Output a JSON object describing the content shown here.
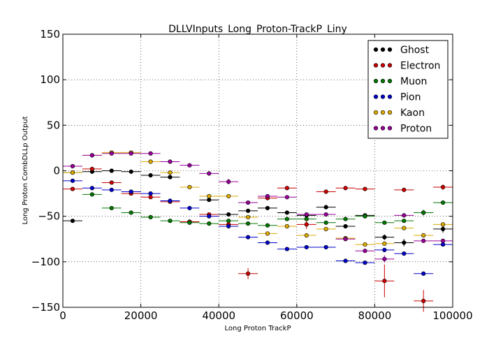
{
  "chart_data": {
    "type": "scatter",
    "title": "DLLVInputs_Long_Proton-TrackP_Liny",
    "xlabel": "Long Proton TrackP",
    "ylabel": "Long Proton CombDLLp Output",
    "xlim": [
      0,
      100000
    ],
    "ylim": [
      -150,
      150
    ],
    "xticks": [
      0,
      20000,
      40000,
      60000,
      80000,
      100000
    ],
    "yticks": [
      -150,
      -100,
      -50,
      0,
      50,
      100,
      150
    ],
    "x_bin_width": 5000,
    "x": [
      2500,
      7500,
      12500,
      17500,
      22500,
      27500,
      32500,
      37500,
      42500,
      47500,
      52500,
      57500,
      62500,
      67500,
      72500,
      77500,
      82500,
      87500,
      92500,
      97500
    ],
    "grid": true,
    "legend_position": "top-right",
    "series": [
      {
        "name": "Ghost",
        "color": "#000000",
        "values": [
          -55,
          -1,
          0,
          -1,
          -5,
          -7,
          -56,
          -32,
          -48,
          -44,
          -41,
          -46,
          -49,
          -40,
          -61,
          -49,
          -73,
          -79,
          -46,
          -64
        ],
        "errors": [
          0,
          0,
          0,
          0,
          0,
          0,
          0,
          0,
          0,
          0,
          0,
          0,
          0,
          0,
          0,
          2,
          3,
          4,
          3,
          4
        ]
      },
      {
        "name": "Electron",
        "color": "#cc0000",
        "values": [
          -20,
          2,
          -13,
          -25,
          -29,
          -34,
          -56,
          -48,
          -59,
          -113,
          -30,
          -19,
          -59,
          -23,
          -19,
          -20,
          -121,
          -21,
          -143,
          -18
        ],
        "errors": [
          0,
          0,
          0,
          0,
          0,
          0,
          0,
          0,
          0,
          6,
          0,
          2,
          5,
          1,
          1,
          1,
          18,
          2,
          12,
          3
        ]
      },
      {
        "name": "Muon",
        "color": "#007700",
        "values": [
          -2,
          -26,
          -41,
          -46,
          -51,
          -55,
          -57,
          -58,
          -55,
          -58,
          -60,
          -53,
          -53,
          -57,
          -53,
          -50,
          -57,
          -55,
          -46,
          -35
        ],
        "errors": [
          0,
          0,
          0,
          0,
          0,
          0,
          0,
          0,
          0,
          0,
          0,
          0,
          0,
          0,
          0,
          0,
          0,
          0,
          0,
          0
        ]
      },
      {
        "name": "Pion",
        "color": "#0000cc",
        "values": [
          -11,
          -19,
          -21,
          -23,
          -25,
          -33,
          -41,
          -50,
          -61,
          -73,
          -79,
          -86,
          -84,
          -84,
          -99,
          -101,
          -87,
          -91,
          -113,
          -81
        ],
        "errors": [
          0,
          0,
          0,
          0,
          0,
          0,
          0,
          0,
          0,
          0,
          0,
          0,
          0,
          0,
          0,
          0,
          0,
          0,
          0,
          0
        ]
      },
      {
        "name": "Kaon",
        "color": "#ddaa00",
        "values": [
          -2,
          17,
          20,
          20,
          10,
          -2,
          -18,
          -28,
          -28,
          -51,
          -69,
          -61,
          -71,
          -64,
          -74,
          -81,
          -80,
          -63,
          -71,
          -59
        ],
        "errors": [
          0,
          0,
          0,
          0,
          0,
          0,
          0,
          0,
          0,
          0,
          0,
          0,
          0,
          0,
          0,
          0,
          0,
          0,
          0,
          0
        ]
      },
      {
        "name": "Proton",
        "color": "#990099",
        "values": [
          5,
          17,
          19,
          19,
          19,
          10,
          6,
          -3,
          -12,
          -35,
          -28,
          -29,
          -48,
          -48,
          -75,
          -88,
          -97,
          -49,
          -77,
          -77
        ],
        "errors": [
          0,
          0,
          0,
          0,
          0,
          0,
          0,
          0,
          3,
          0,
          0,
          0,
          0,
          0,
          0,
          0,
          4,
          0,
          0,
          0
        ]
      }
    ]
  }
}
